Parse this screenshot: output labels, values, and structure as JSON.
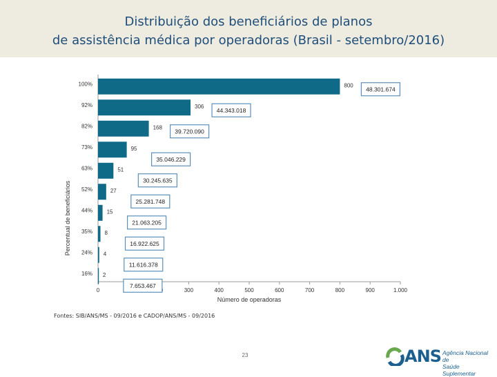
{
  "title_line1": "Distribuição dos beneficiários de planos",
  "title_line2": "de assistência médica por operadoras (Brasil - setembro/2016)",
  "source": "Fontes: SIB/ANS/MS - 09/2016 e CADOP/ANS/MS - 09/2016",
  "page_number": "23",
  "logo": {
    "acronym": "ANS",
    "line1": "Agência Nacional de",
    "line2": "Saúde Suplementar"
  },
  "colors": {
    "bar": "#0e6a87",
    "title": "#1f4e79",
    "header_bg": "#eeebe1",
    "box_border": "#5b8fb9"
  },
  "chart_data": {
    "type": "bar",
    "orientation": "horizontal",
    "xlabel": "Número de operadoras",
    "ylabel": "Percentual de beneficiários",
    "xlim": [
      0,
      1000
    ],
    "xticks": [
      "0",
      "100",
      "200",
      "300",
      "400",
      "500",
      "600",
      "700",
      "800",
      "900",
      "1.000"
    ],
    "xtick_values": [
      0,
      100,
      200,
      300,
      400,
      500,
      600,
      700,
      800,
      900,
      1000
    ],
    "categories": [
      "100%",
      "92%",
      "82%",
      "73%",
      "63%",
      "52%",
      "44%",
      "35%",
      "24%",
      "16%"
    ],
    "values": [
      800,
      306,
      168,
      95,
      51,
      27,
      15,
      8,
      4,
      2
    ],
    "value_labels": [
      "800",
      "306",
      "168",
      "95",
      "51",
      "27",
      "15",
      "8",
      "4",
      "2"
    ],
    "beneficiaries": [
      "48.301.674",
      "44.343.018",
      "39.720.090",
      "35.046.229",
      "30.245.635",
      "25.281.748",
      "21.063.205",
      "16.922.625",
      "11.616.378",
      "7.653.467"
    ],
    "grid": false
  }
}
